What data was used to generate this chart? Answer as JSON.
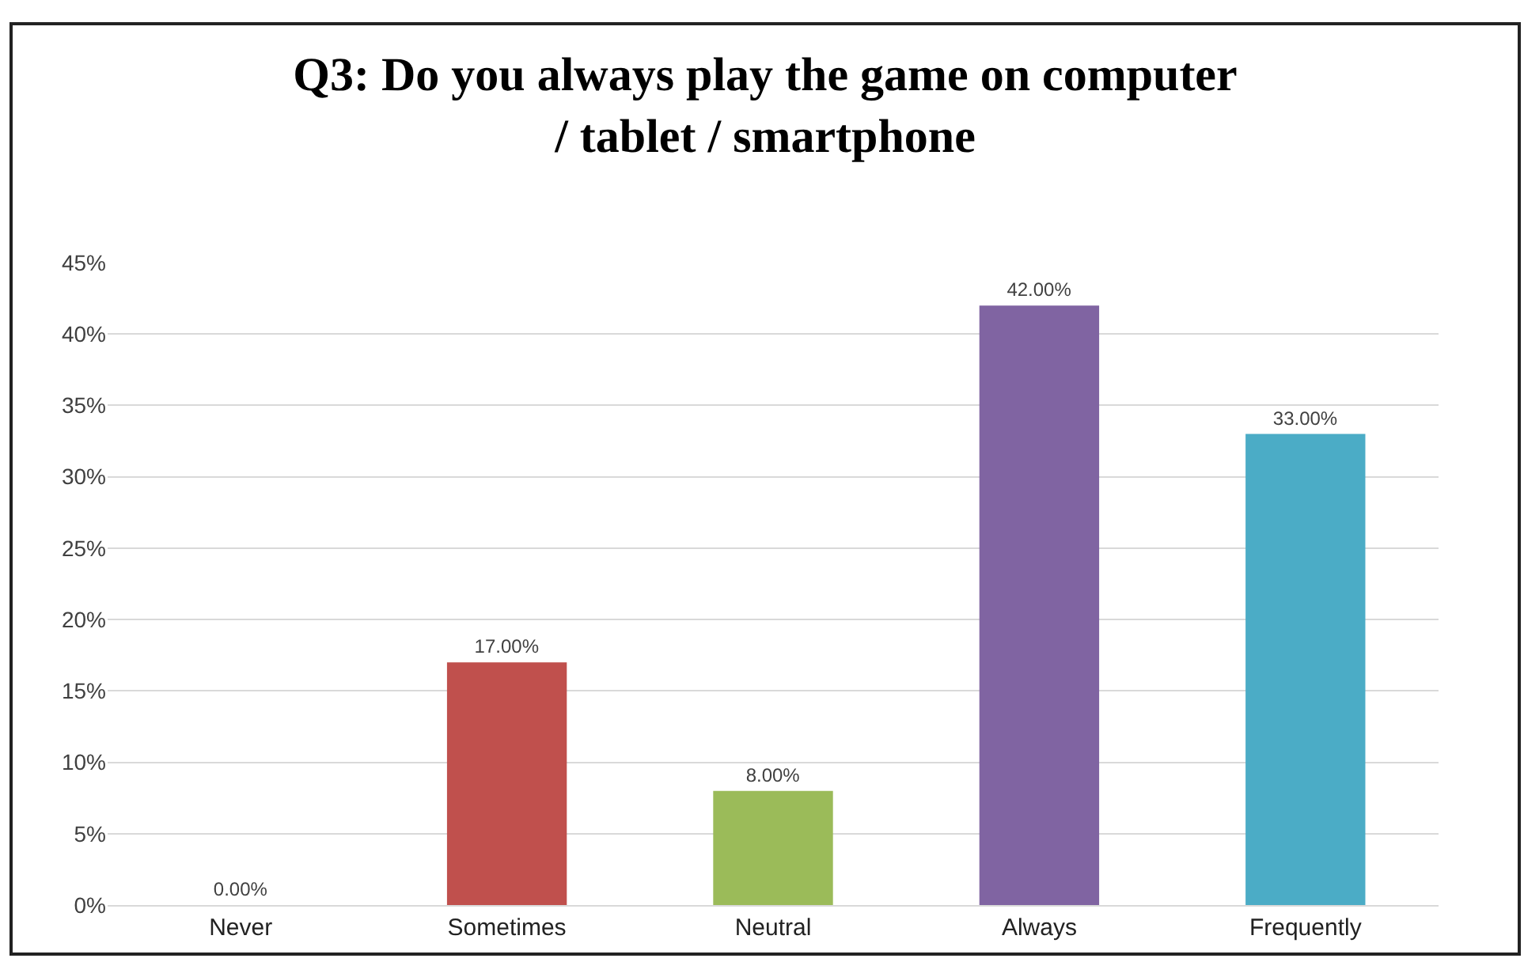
{
  "chart_data": {
    "type": "bar",
    "title": "Q3: Do you always play the game on computer / tablet / smartphone",
    "categories": [
      "Never",
      "Sometimes",
      "Neutral",
      "Always",
      "Frequently"
    ],
    "values": [
      0,
      17,
      8,
      42,
      33
    ],
    "colors": [
      "#4f81bd",
      "#c0504d",
      "#9bbb59",
      "#8064a2",
      "#4bacc6"
    ],
    "value_labels": [
      "0.00%",
      "17.00%",
      "8.00%",
      "42.00%",
      "33.00%"
    ],
    "ylim": [
      0,
      45
    ],
    "yticks": [
      {
        "value": 0,
        "label": "0%"
      },
      {
        "value": 5,
        "label": "5%"
      },
      {
        "value": 10,
        "label": "10%"
      },
      {
        "value": 15,
        "label": "15%"
      },
      {
        "value": 20,
        "label": "20%"
      },
      {
        "value": 25,
        "label": "25%"
      },
      {
        "value": 30,
        "label": "30%"
      },
      {
        "value": 35,
        "label": "35%"
      },
      {
        "value": 40,
        "label": "40%"
      },
      {
        "value": 45,
        "label": "45%"
      }
    ],
    "grid": "y",
    "legend": false
  }
}
